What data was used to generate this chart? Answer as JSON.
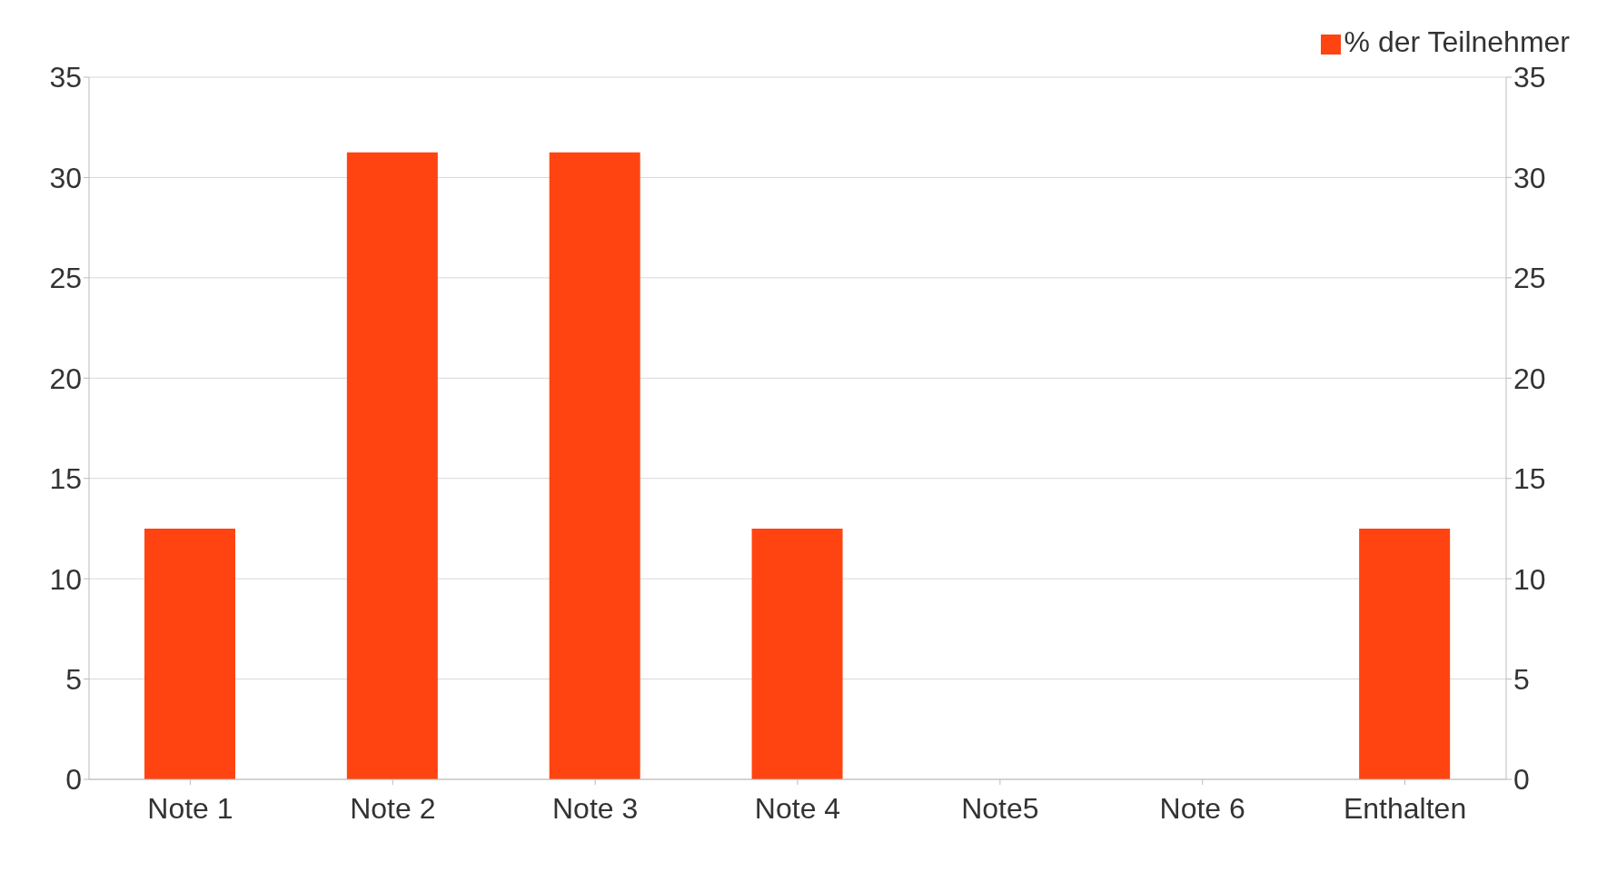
{
  "chart_data": {
    "type": "bar",
    "categories": [
      "Note 1",
      "Note 2",
      "Note 3",
      "Note 4",
      "Note5",
      "Note 6",
      "Enthalten"
    ],
    "series": [
      {
        "name": "% der Teilnehmer",
        "color": "#ff4411",
        "values": [
          12.5,
          31.25,
          31.25,
          12.5,
          0,
          0,
          12.5
        ]
      }
    ],
    "ylim": [
      0,
      35
    ],
    "yticks": [
      0,
      5,
      10,
      15,
      20,
      25,
      30,
      35
    ],
    "y2lim": [
      0,
      35
    ],
    "y2ticks": [
      0,
      5,
      10,
      15,
      20,
      25,
      30,
      35
    ],
    "grid": "y",
    "legend": "top right"
  }
}
